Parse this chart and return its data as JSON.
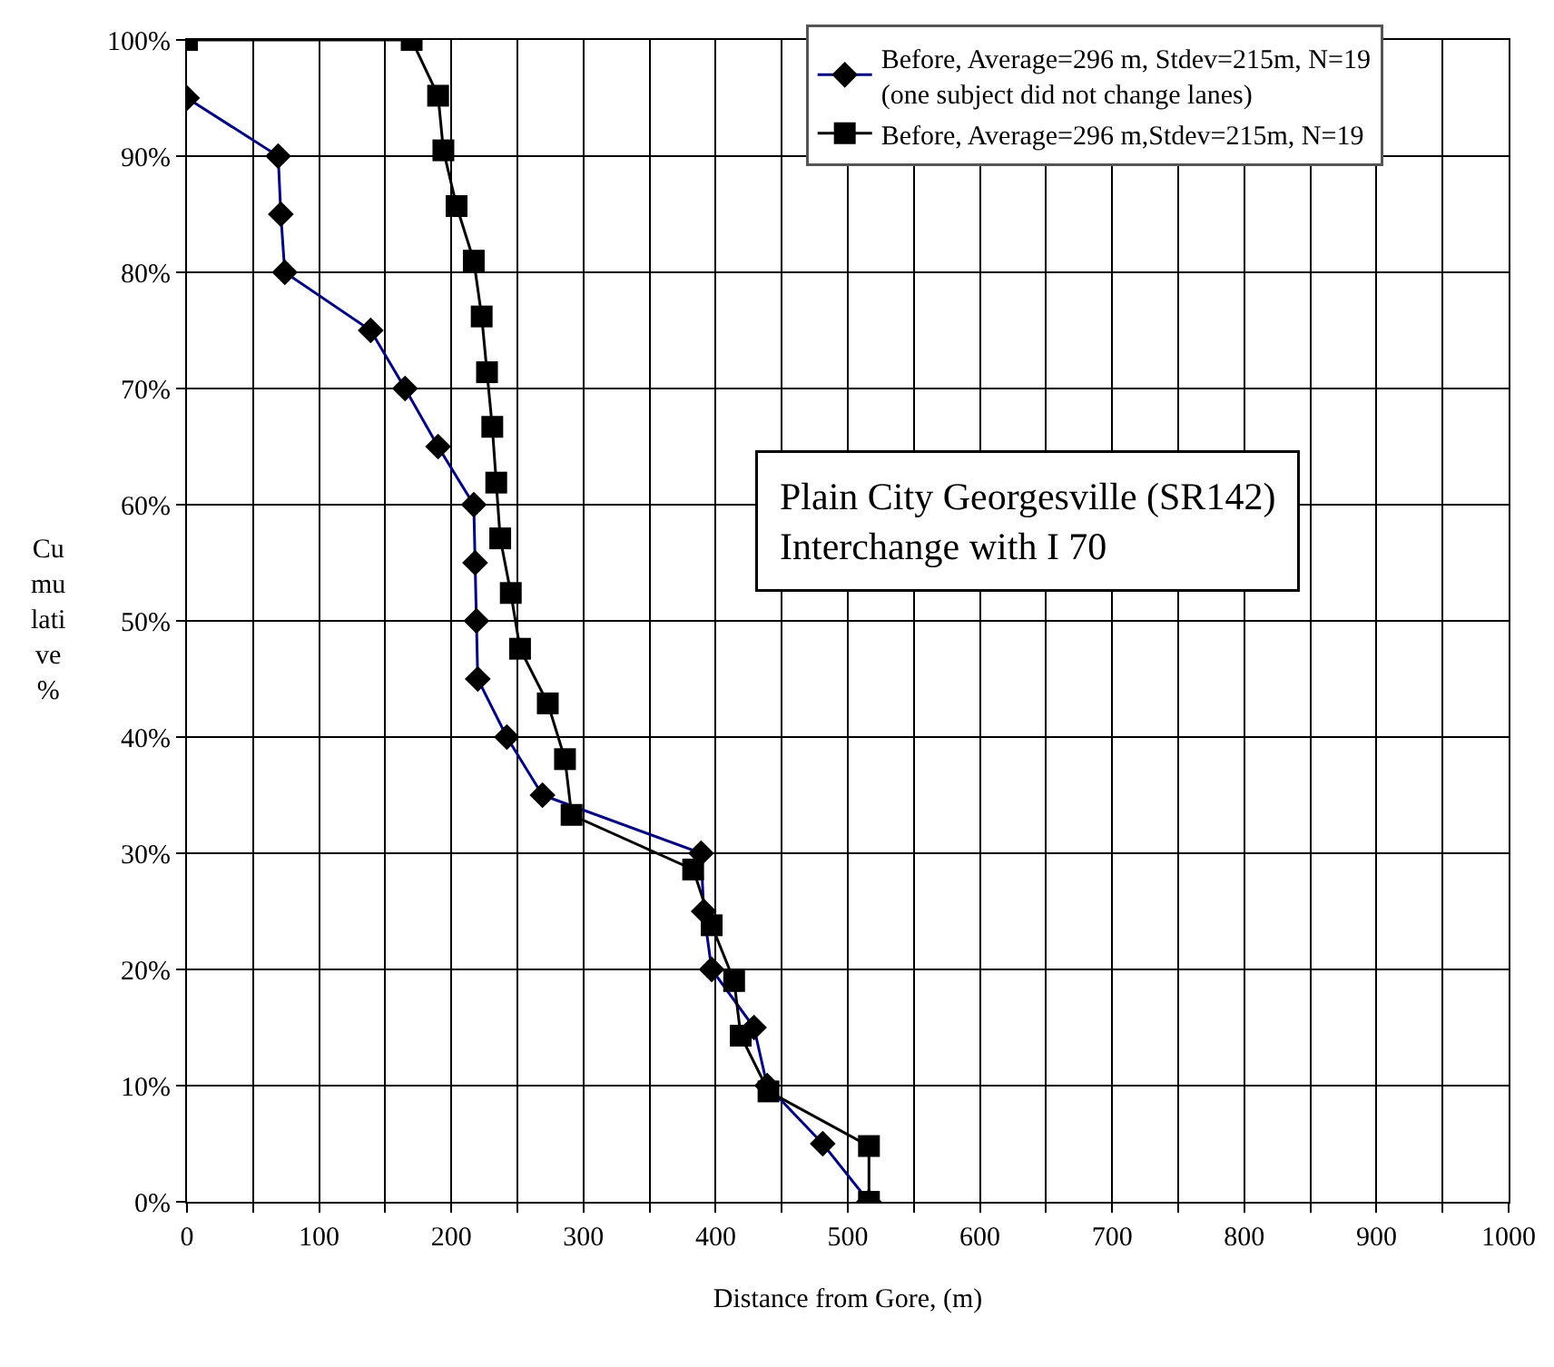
{
  "chart_data": {
    "type": "line",
    "xlabel": "Distance from Gore, (m)",
    "ylabel": "Cumulative %",
    "annotations": [
      "Plain City Georgesville (SR142)\nInterchange with I 70"
    ],
    "series": [
      {
        "name": "Before, Average=296 m, Stdev=215m, N=19\n(one subject did not change lanes)",
        "color": "#000080",
        "marker": "diamond",
        "x": [
          0,
          69,
          71,
          74,
          139,
          165,
          190,
          217,
          218,
          219,
          220,
          242,
          269,
          389,
          391,
          397,
          429,
          439,
          481,
          516
        ],
        "values": [
          95,
          90,
          85,
          80,
          75,
          70,
          65,
          60,
          55,
          50,
          45,
          40,
          35,
          30,
          25,
          20,
          15,
          10,
          5,
          0
        ]
      },
      {
        "name": "Before, Average=296 m,Stdev=215m, N=19",
        "color": "#000000",
        "marker": "square",
        "x": [
          0,
          170,
          190,
          194,
          204,
          217,
          223,
          227,
          231,
          234,
          237,
          245,
          252,
          273,
          286,
          291,
          383,
          397,
          414,
          419,
          440,
          516,
          516
        ],
        "values": [
          100,
          100,
          95.2,
          90.5,
          85.7,
          81.0,
          76.2,
          71.4,
          66.7,
          61.9,
          57.1,
          52.4,
          47.6,
          42.9,
          38.1,
          33.3,
          28.6,
          23.8,
          19.0,
          14.3,
          9.5,
          4.8,
          0
        ]
      }
    ],
    "xlim": [
      0,
      1000
    ],
    "xticks": [
      0,
      {
        "value": 50,
        "label": null
      },
      100,
      {
        "value": 150,
        "label": null
      },
      200,
      {
        "value": 250,
        "label": null
      },
      300,
      {
        "value": 350,
        "label": null
      },
      400,
      {
        "value": 450,
        "label": null
      },
      500,
      {
        "value": 550,
        "label": null
      },
      600,
      {
        "value": 650,
        "label": null
      },
      700,
      {
        "value": 750,
        "label": null
      },
      800,
      {
        "value": 850,
        "label": null
      },
      900,
      {
        "value": 950,
        "label": null
      },
      1000
    ],
    "ylim": [
      0,
      100
    ],
    "yticks": [
      {
        "value": 0,
        "label": "0%"
      },
      {
        "value": 10,
        "label": "10%"
      },
      {
        "value": 20,
        "label": "20%"
      },
      {
        "value": 30,
        "label": "30%"
      },
      {
        "value": 40,
        "label": "40%"
      },
      {
        "value": 50,
        "label": "50%"
      },
      {
        "value": 60,
        "label": "60%"
      },
      {
        "value": 70,
        "label": "70%"
      },
      {
        "value": 80,
        "label": "80%"
      },
      {
        "value": 90,
        "label": "90%"
      },
      {
        "value": 100,
        "label": "100%"
      }
    ],
    "grid": true,
    "legend": "top right",
    "line_style": "solid"
  }
}
